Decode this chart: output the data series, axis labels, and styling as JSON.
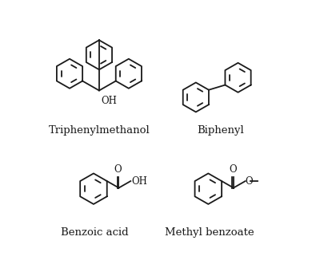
{
  "background_color": "#ffffff",
  "label_fontsize": 9.5,
  "line_color": "#1a1a1a",
  "line_width": 1.3,
  "labels": {
    "triphenylmethanol": "Triphenylmethanol",
    "biphenyl": "Biphenyl",
    "benzoic_acid": "Benzoic acid",
    "methyl_benzoate": "Methyl benzoate"
  }
}
